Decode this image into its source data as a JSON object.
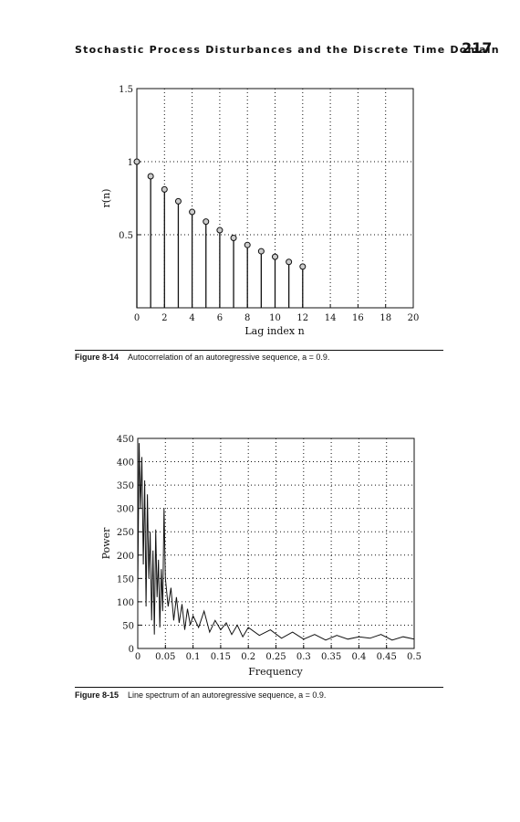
{
  "header": {
    "title": "Stochastic Process Disturbances and the Discrete Time Domain",
    "page_number": "217"
  },
  "figure1": {
    "caption_label": "Figure 8-14",
    "caption_text": "Autocorrelation of an autoregressive sequence, a = 0.9.",
    "chart_data": {
      "type": "stem",
      "xlabel": "Lag index n",
      "ylabel": "r(n)",
      "xlim": [
        0,
        20
      ],
      "ylim": [
        0,
        1.5
      ],
      "x_ticks": [
        0,
        2,
        4,
        6,
        8,
        10,
        12,
        14,
        16,
        18,
        20
      ],
      "y_ticks": [
        0.5,
        1,
        1.5
      ],
      "grid": true,
      "x": [
        0,
        1,
        2,
        3,
        4,
        5,
        6,
        7,
        8,
        9,
        10,
        11,
        12
      ],
      "values": [
        1.0,
        0.9,
        0.81,
        0.729,
        0.656,
        0.59,
        0.531,
        0.478,
        0.43,
        0.387,
        0.349,
        0.314,
        0.282
      ]
    }
  },
  "figure2": {
    "caption_label": "Figure 8-15",
    "caption_text": "Line spectrum of an autoregressive sequence, a = 0.9.",
    "chart_data": {
      "type": "line",
      "xlabel": "Frequency",
      "ylabel": "Power",
      "xlim": [
        0,
        0.5
      ],
      "ylim": [
        0,
        450
      ],
      "x_ticks": [
        0,
        0.05,
        0.1,
        0.15,
        0.2,
        0.25,
        0.3,
        0.35,
        0.4,
        0.45,
        0.5
      ],
      "y_ticks": [
        0,
        50,
        100,
        150,
        200,
        250,
        300,
        350,
        400,
        450
      ],
      "grid": true,
      "x": [
        0,
        0.0025,
        0.005,
        0.0075,
        0.01,
        0.0125,
        0.015,
        0.0175,
        0.02,
        0.0225,
        0.025,
        0.0275,
        0.03,
        0.0325,
        0.035,
        0.0375,
        0.04,
        0.0425,
        0.045,
        0.0475,
        0.05,
        0.055,
        0.06,
        0.065,
        0.07,
        0.075,
        0.08,
        0.085,
        0.09,
        0.095,
        0.1,
        0.11,
        0.12,
        0.13,
        0.14,
        0.15,
        0.16,
        0.17,
        0.18,
        0.19,
        0.2,
        0.22,
        0.24,
        0.26,
        0.28,
        0.3,
        0.32,
        0.34,
        0.36,
        0.38,
        0.4,
        0.42,
        0.44,
        0.46,
        0.48,
        0.5
      ],
      "values": [
        120,
        440,
        300,
        410,
        180,
        360,
        90,
        330,
        150,
        250,
        60,
        210,
        30,
        255,
        110,
        190,
        45,
        170,
        80,
        300,
        150,
        90,
        130,
        60,
        110,
        55,
        95,
        40,
        85,
        50,
        70,
        45,
        80,
        35,
        60,
        40,
        55,
        30,
        50,
        25,
        45,
        28,
        40,
        22,
        35,
        20,
        30,
        18,
        28,
        20,
        25,
        22,
        30,
        18,
        25,
        20
      ]
    }
  }
}
